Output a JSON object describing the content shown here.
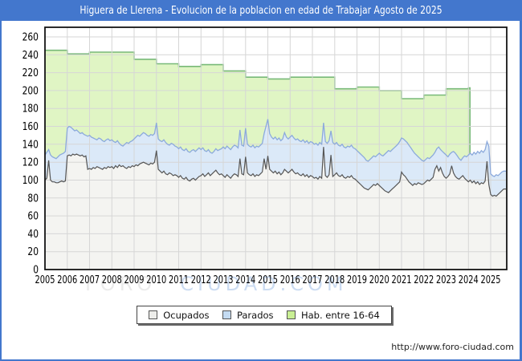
{
  "window": {
    "title": "Higuera de Llerena - Evolucion de la poblacion en edad de Trabajar Agosto de 2025",
    "titlebar_color": "#4377cd"
  },
  "watermark": {
    "part1": "FORO",
    "part2": "CIUDAD.COM"
  },
  "footer": {
    "url": "http://www.foro-ciudad.com"
  },
  "legend": [
    {
      "label": "Ocupados",
      "fill": "#ededea",
      "line": "#555555"
    },
    {
      "label": "Parados",
      "fill": "#c4dbf2",
      "line": "#8caadc"
    },
    {
      "label": "Hab. entre 16-64",
      "fill": "#c9ef94",
      "line": "#78b978"
    }
  ],
  "chart_data": {
    "type": "area",
    "title": "Higuera de Llerena - Evolucion de la poblacion en edad de Trabajar Agosto de 2025",
    "xlabel": "",
    "ylabel": "",
    "ylim": [
      0,
      270
    ],
    "yticks": [
      0,
      20,
      40,
      60,
      80,
      100,
      120,
      140,
      160,
      180,
      200,
      220,
      240,
      260
    ],
    "x_tick_labels": [
      "2005",
      "2006",
      "2007",
      "2008",
      "2009",
      "2010",
      "2011",
      "2012",
      "2013",
      "2014",
      "2015",
      "2016",
      "2017",
      "2018",
      "2019",
      "2020",
      "2021",
      "2022",
      "2023",
      "2024",
      "2025"
    ],
    "grid": true,
    "legend_position": "bottom",
    "x_monthly_start": "2005-01",
    "x_monthly_end": "2025-08",
    "series": [
      {
        "name": "Ocupados",
        "color_line": "#555555",
        "color_fill": "#f4f4f1",
        "values": [
          100,
          102,
          122,
          100,
          98,
          98,
          97,
          97,
          98,
          99,
          98,
          99,
          127,
          128,
          127,
          129,
          128,
          129,
          128,
          127,
          128,
          126,
          127,
          112,
          113,
          112,
          114,
          113,
          115,
          114,
          113,
          112,
          114,
          113,
          115,
          114,
          115,
          113,
          116,
          114,
          117,
          115,
          116,
          114,
          113,
          115,
          114,
          116,
          115,
          117,
          116,
          118,
          119,
          120,
          119,
          118,
          117,
          119,
          118,
          120,
          133,
          112,
          110,
          108,
          110,
          107,
          106,
          108,
          107,
          105,
          106,
          105,
          103,
          105,
          102,
          101,
          103,
          100,
          99,
          101,
          102,
          100,
          102,
          104,
          105,
          107,
          104,
          106,
          108,
          105,
          107,
          109,
          111,
          108,
          106,
          107,
          105,
          103,
          106,
          104,
          102,
          105,
          107,
          106,
          104,
          124,
          107,
          106,
          126,
          108,
          106,
          105,
          107,
          104,
          106,
          105,
          107,
          109,
          124,
          112,
          127,
          112,
          110,
          108,
          110,
          107,
          109,
          106,
          108,
          112,
          110,
          108,
          110,
          112,
          109,
          107,
          108,
          106,
          105,
          107,
          104,
          106,
          103,
          105,
          104,
          102,
          103,
          101,
          104,
          102,
          137,
          105,
          103,
          106,
          128,
          104,
          106,
          108,
          105,
          104,
          106,
          103,
          102,
          104,
          103,
          105,
          102,
          101,
          99,
          97,
          95,
          93,
          91,
          90,
          89,
          91,
          93,
          95,
          94,
          96,
          94,
          92,
          90,
          88,
          87,
          86,
          88,
          90,
          92,
          94,
          96,
          98,
          109,
          106,
          104,
          101,
          98,
          96,
          94,
          96,
          95,
          97,
          96,
          95,
          96,
          98,
          100,
          99,
          101,
          103,
          112,
          116,
          110,
          114,
          108,
          104,
          102,
          104,
          107,
          116,
          108,
          104,
          102,
          101,
          103,
          105,
          102,
          100,
          98,
          100,
          97,
          99,
          96,
          98,
          95,
          97,
          96,
          99,
          121,
          95,
          84,
          82,
          83,
          82,
          84,
          86,
          88,
          90
        ]
      },
      {
        "name": "Parados",
        "color_line": "#8caadc",
        "color_fill": "#dbe9f8",
        "note": "values are the plotted top edge of the blue band (drawn stacked above Ocupados)",
        "values": [
          128,
          131,
          134,
          128,
          126,
          125,
          124,
          126,
          128,
          129,
          130,
          132,
          158,
          160,
          159,
          157,
          155,
          156,
          154,
          152,
          153,
          151,
          150,
          149,
          150,
          148,
          147,
          146,
          145,
          147,
          146,
          144,
          143,
          145,
          146,
          144,
          145,
          143,
          142,
          144,
          141,
          139,
          138,
          140,
          142,
          141,
          143,
          144,
          146,
          148,
          150,
          149,
          151,
          153,
          152,
          150,
          149,
          151,
          150,
          152,
          164,
          146,
          144,
          143,
          145,
          142,
          140,
          139,
          141,
          140,
          138,
          137,
          135,
          137,
          134,
          133,
          135,
          132,
          131,
          133,
          134,
          132,
          134,
          136,
          134,
          136,
          133,
          132,
          134,
          131,
          130,
          132,
          135,
          133,
          134,
          135,
          137,
          135,
          138,
          136,
          134,
          137,
          139,
          138,
          136,
          156,
          139,
          138,
          158,
          140,
          138,
          137,
          139,
          136,
          138,
          137,
          139,
          141,
          152,
          160,
          168,
          152,
          148,
          146,
          148,
          145,
          147,
          144,
          146,
          153,
          148,
          146,
          148,
          150,
          147,
          145,
          146,
          144,
          143,
          145,
          142,
          144,
          141,
          143,
          142,
          140,
          141,
          139,
          142,
          140,
          164,
          143,
          141,
          144,
          155,
          142,
          140,
          142,
          139,
          138,
          140,
          137,
          136,
          138,
          137,
          139,
          136,
          135,
          133,
          131,
          129,
          127,
          125,
          122,
          121,
          123,
          125,
          127,
          126,
          128,
          130,
          128,
          127,
          129,
          131,
          133,
          132,
          134,
          136,
          138,
          140,
          143,
          147,
          146,
          144,
          142,
          139,
          136,
          133,
          130,
          128,
          126,
          124,
          122,
          121,
          123,
          125,
          124,
          126,
          128,
          131,
          135,
          137,
          134,
          132,
          130,
          128,
          126,
          129,
          131,
          132,
          130,
          127,
          124,
          122,
          125,
          127,
          126,
          128,
          130,
          128,
          131,
          129,
          132,
          130,
          133,
          131,
          134,
          143,
          138,
          107,
          105,
          104,
          106,
          105,
          107,
          109,
          110
        ]
      },
      {
        "name": "Hab. entre 16-64",
        "color_line": "#78b978",
        "color_fill": "#e0f5c4",
        "annual_years": [
          2005,
          2006,
          2007,
          2008,
          2009,
          2010,
          2011,
          2012,
          2013,
          2014,
          2015,
          2016,
          2017,
          2018,
          2019,
          2020,
          2021,
          2022,
          2023,
          2024
        ],
        "annual_values": [
          245,
          241,
          243,
          243,
          235,
          230,
          227,
          229,
          222,
          215,
          213,
          215,
          215,
          202,
          204,
          200,
          191,
          195,
          202,
          203
        ],
        "series_end_x": 2024.07
      }
    ]
  }
}
